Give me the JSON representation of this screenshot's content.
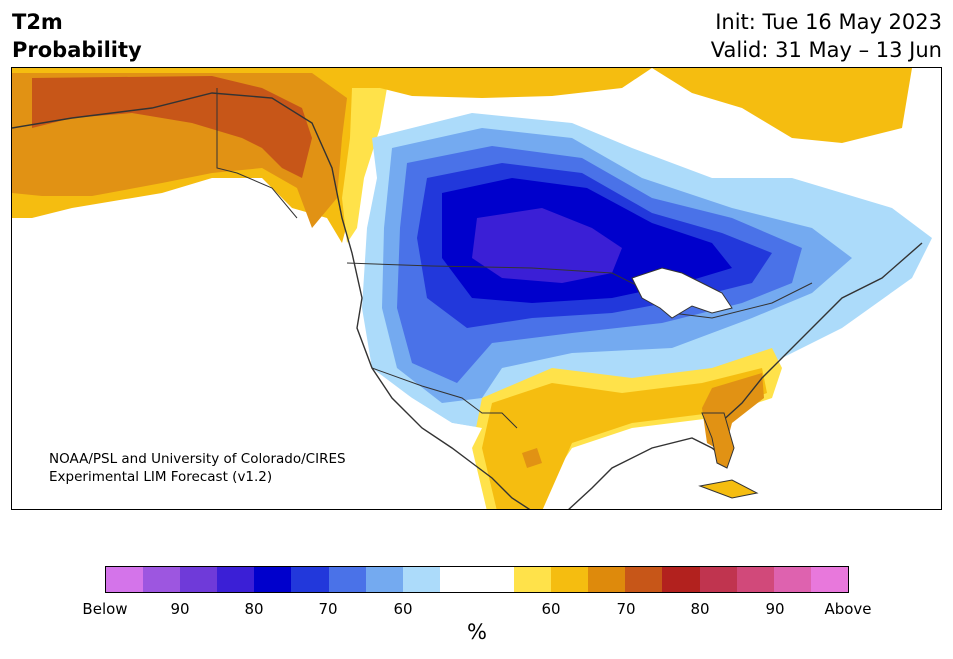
{
  "header": {
    "title_line1": "T2m",
    "title_line2": "Probability",
    "init": "Init: Tue 16 May 2023",
    "valid": "Valid: 31 May – 13 Jun"
  },
  "credit": {
    "line1": "NOAA/PSL and University of Colorado/CIRES",
    "line2": "Experimental LIM Forecast (v1.2)"
  },
  "colorbar": {
    "colors": [
      "#d474ea",
      "#9d56e0",
      "#6f3ad9",
      "#3b1fd6",
      "#0000cc",
      "#2238db",
      "#4a72e8",
      "#74aaf0",
      "#acdbfa",
      "#ffffff",
      "#ffffff",
      "#ffe24a",
      "#f5bd10",
      "#de8a0c",
      "#c75618",
      "#b2211e",
      "#c0344f",
      "#d1497a",
      "#de62af",
      "#e878dc"
    ],
    "tick_labels": [
      "Below",
      "90",
      "80",
      "70",
      "60",
      "60",
      "70",
      "80",
      "90",
      "Above"
    ],
    "unit_label": "%"
  },
  "map": {
    "category_colors": {
      "light_orange": "#e19214",
      "dark_orange": "#c75618",
      "gold": "#f5bd10",
      "yellow": "#ffe24a",
      "light_blue": "#acdbfa",
      "sky_blue": "#74aaf0",
      "medium_blue": "#4a72e8",
      "royal_blue": "#2238db",
      "pure_blue": "#0000cc",
      "violet_blue": "#3b1fd6",
      "land_outline": "#333333"
    }
  }
}
